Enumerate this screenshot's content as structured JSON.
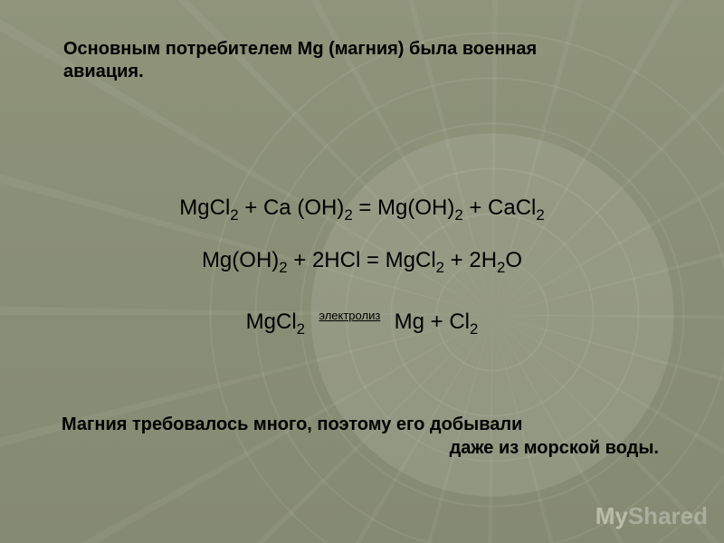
{
  "slide": {
    "background_color": "#8a8f77",
    "text_color": "#000000",
    "heading_fontsize": 20,
    "equation_fontsize": 24,
    "footer_fontsize": 20,
    "heading": "Основным потребителем Mg (магния) была военная авиация.",
    "equations": {
      "eq1": "MgCl₂ + Ca (OH)₂ = Mg(OH)₂ + CaCl₂",
      "eq2": "Mg(OH)₂ + 2HCl = MgCl₂ + 2H₂O",
      "eq3_left": "MgCl₂",
      "eq3_label": "электролиз",
      "eq3_right": "Mg + Cl₂"
    },
    "footer_line1": "Магния требовалось много, поэтому его добывали",
    "footer_line2": "даже из морской воды.",
    "watermark_my": "My",
    "watermark_shared": "Shared"
  }
}
